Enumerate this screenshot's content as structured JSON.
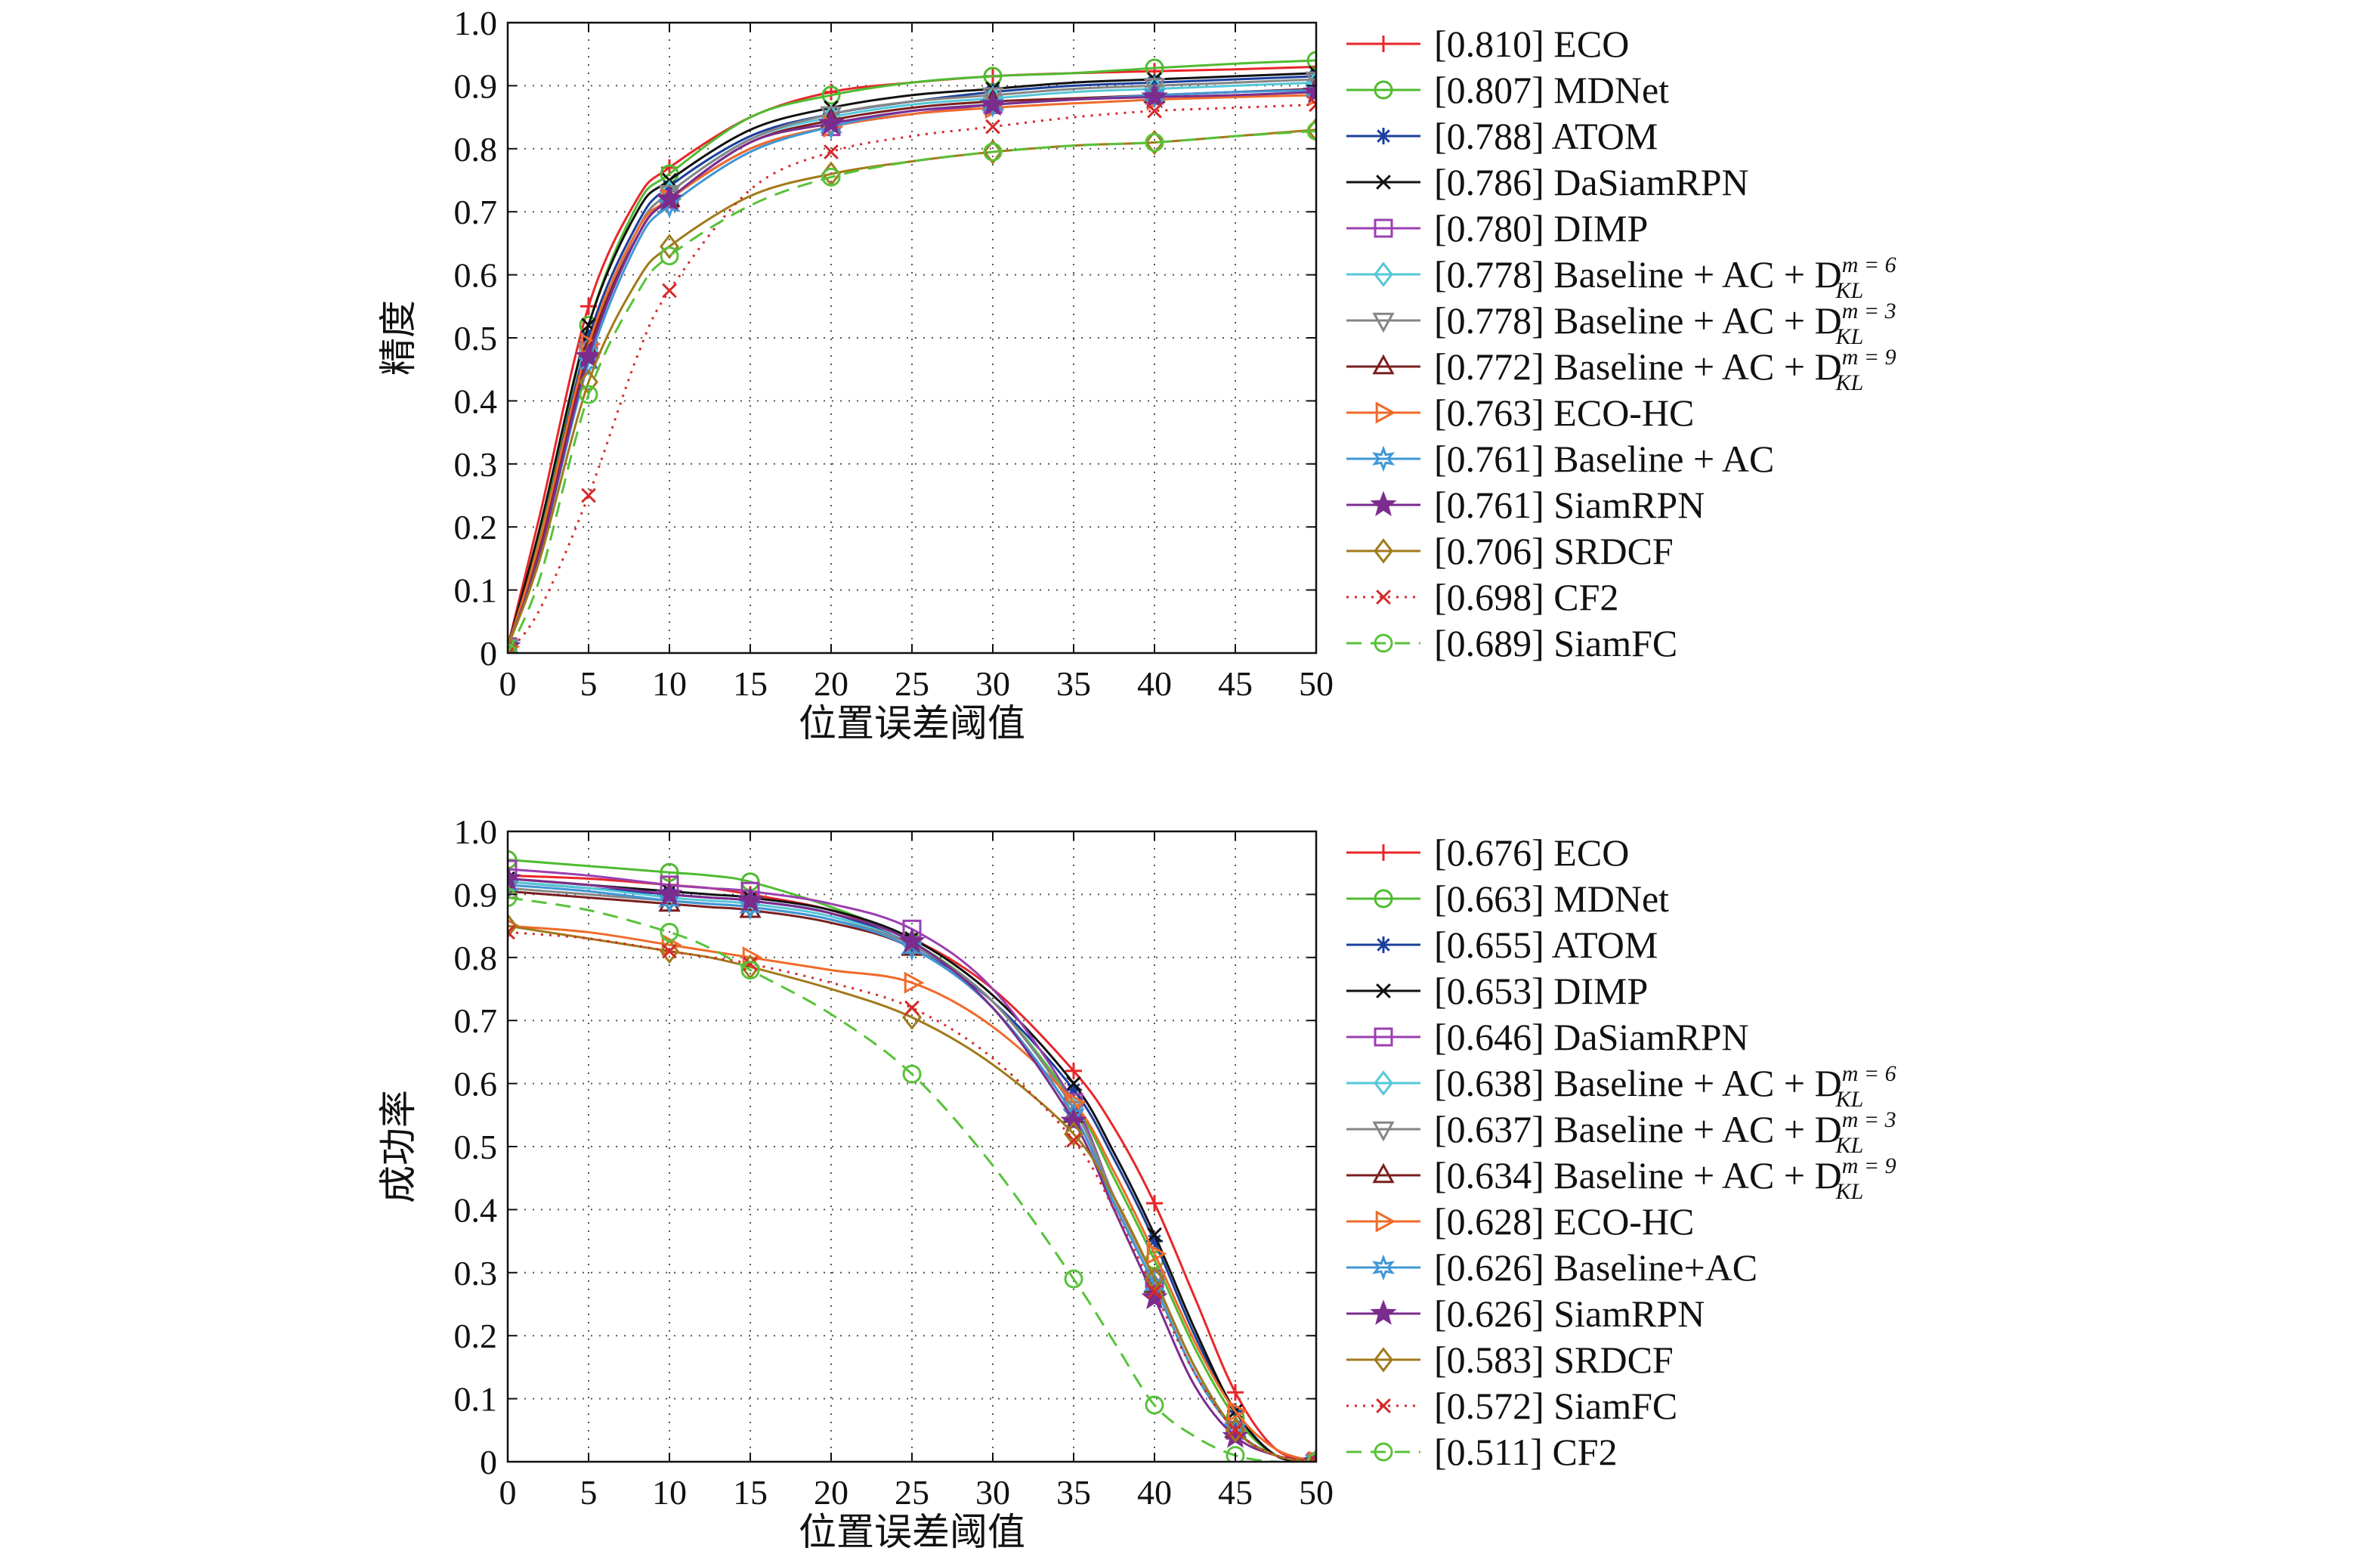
{
  "chart_data": [
    {
      "type": "line",
      "title": "",
      "xlabel": "位置误差阈值",
      "ylabel": "精度",
      "xlim": [
        0,
        50
      ],
      "ylim": [
        0,
        1
      ],
      "grid": true,
      "legend_placement": "right-outside",
      "x_ticks": [
        "0",
        "5",
        "10",
        "15",
        "20",
        "25",
        "30",
        "35",
        "40",
        "45",
        "50"
      ],
      "y_ticks": [
        "0",
        "0.1",
        "0.2",
        "0.3",
        "0.4",
        "0.5",
        "0.6",
        "0.7",
        "0.8",
        "0.9",
        "1.0"
      ],
      "x": [
        0,
        2,
        5,
        8,
        10,
        15,
        20,
        25,
        30,
        35,
        40,
        45,
        50
      ],
      "series": [
        {
          "score": "[0.810]",
          "name": "ECO",
          "color": "#e8262a",
          "marker": "plus",
          "dash": "solid",
          "values": [
            0.01,
            0.22,
            0.55,
            0.72,
            0.77,
            0.85,
            0.89,
            0.905,
            0.915,
            0.92,
            0.923,
            0.926,
            0.93
          ]
        },
        {
          "score": "[0.807]",
          "name": "MDNet",
          "color": "#4fbb30",
          "marker": "circle",
          "dash": "solid",
          "values": [
            0.01,
            0.19,
            0.52,
            0.71,
            0.76,
            0.85,
            0.885,
            0.905,
            0.915,
            0.92,
            0.928,
            0.935,
            0.94
          ]
        },
        {
          "score": "[0.788]",
          "name": "ATOM",
          "color": "#1b3f9c",
          "marker": "asterisk",
          "dash": "solid",
          "values": [
            0.01,
            0.18,
            0.5,
            0.68,
            0.74,
            0.82,
            0.855,
            0.875,
            0.89,
            0.9,
            0.905,
            0.91,
            0.915
          ]
        },
        {
          "score": "[0.786]",
          "name": "DaSiamRPN",
          "color": "#111111",
          "marker": "x",
          "dash": "solid",
          "values": [
            0.01,
            0.2,
            0.52,
            0.7,
            0.75,
            0.83,
            0.865,
            0.885,
            0.895,
            0.905,
            0.91,
            0.915,
            0.92
          ]
        },
        {
          "score": "[0.780]",
          "name": "DIMP",
          "color": "#9b3fb0",
          "marker": "square",
          "dash": "solid",
          "values": [
            0.01,
            0.17,
            0.48,
            0.66,
            0.72,
            0.8,
            0.835,
            0.855,
            0.87,
            0.878,
            0.885,
            0.89,
            0.895
          ]
        },
        {
          "score": "[0.778]",
          "name": "Baseline + AC + D",
          "sup": "m = 6",
          "sub": "KL",
          "color": "#54c8d8",
          "marker": "diamond",
          "dash": "solid",
          "values": [
            0.01,
            0.17,
            0.48,
            0.67,
            0.73,
            0.815,
            0.85,
            0.87,
            0.88,
            0.89,
            0.895,
            0.9,
            0.905
          ]
        },
        {
          "score": "[0.778]",
          "name": "Baseline + AC + D",
          "sup": "m = 3",
          "sub": "KL",
          "color": "#858585",
          "marker": "triangle-down",
          "dash": "solid",
          "values": [
            0.01,
            0.17,
            0.48,
            0.67,
            0.73,
            0.815,
            0.855,
            0.875,
            0.885,
            0.895,
            0.9,
            0.905,
            0.91
          ]
        },
        {
          "score": "[0.772]",
          "name": "Baseline + AC + D",
          "sup": "m = 9",
          "sub": "KL",
          "color": "#7a1f1f",
          "marker": "triangle-up",
          "dash": "solid",
          "values": [
            0.01,
            0.17,
            0.48,
            0.66,
            0.72,
            0.81,
            0.845,
            0.865,
            0.875,
            0.88,
            0.885,
            0.89,
            0.895
          ]
        },
        {
          "score": "[0.763]",
          "name": "ECO-HC",
          "color": "#ef6b2a",
          "marker": "triangle-right",
          "dash": "solid",
          "values": [
            0.01,
            0.18,
            0.49,
            0.67,
            0.72,
            0.8,
            0.835,
            0.855,
            0.865,
            0.872,
            0.878,
            0.882,
            0.885
          ]
        },
        {
          "score": "[0.761]",
          "name": "Baseline + AC",
          "color": "#3f97d6",
          "marker": "star6",
          "dash": "solid",
          "values": [
            0.01,
            0.16,
            0.46,
            0.65,
            0.71,
            0.795,
            0.835,
            0.86,
            0.87,
            0.878,
            0.885,
            0.89,
            0.893
          ]
        },
        {
          "score": "[0.761]",
          "name": "SiamRPN",
          "color": "#7b2d8e",
          "marker": "star5",
          "dash": "solid",
          "values": [
            0.01,
            0.16,
            0.47,
            0.66,
            0.72,
            0.81,
            0.84,
            0.86,
            0.87,
            0.878,
            0.882,
            0.885,
            0.89
          ]
        },
        {
          "score": "[0.706]",
          "name": "SRDCF",
          "color": "#a07a1a",
          "marker": "diamond",
          "dash": "solid",
          "values": [
            0.01,
            0.15,
            0.43,
            0.59,
            0.645,
            0.725,
            0.76,
            0.78,
            0.795,
            0.805,
            0.81,
            0.82,
            0.83
          ]
        },
        {
          "score": "[0.698]",
          "name": "CF2",
          "color": "#d62a2a",
          "marker": "x",
          "dash": "dotted",
          "values": [
            0.0,
            0.07,
            0.25,
            0.47,
            0.575,
            0.735,
            0.795,
            0.82,
            0.835,
            0.85,
            0.86,
            0.865,
            0.87
          ]
        },
        {
          "score": "[0.689]",
          "name": "SiamFC",
          "color": "#58c23a",
          "marker": "circle",
          "dash": "dashed",
          "values": [
            0.0,
            0.12,
            0.41,
            0.57,
            0.63,
            0.71,
            0.755,
            0.78,
            0.795,
            0.805,
            0.81,
            0.82,
            0.828
          ]
        }
      ]
    },
    {
      "type": "line",
      "title": "",
      "xlabel": "位置误差阈值",
      "ylabel": "成功率",
      "xlim": [
        0,
        50
      ],
      "ylim": [
        0,
        1
      ],
      "grid": true,
      "legend_placement": "right-outside",
      "x_ticks": [
        "0",
        "5",
        "10",
        "15",
        "20",
        "25",
        "30",
        "35",
        "40",
        "45",
        "50"
      ],
      "y_ticks": [
        "0",
        "0.1",
        "0.2",
        "0.3",
        "0.4",
        "0.5",
        "0.6",
        "0.7",
        "0.8",
        "0.9",
        "1.0"
      ],
      "x": [
        0,
        5,
        10,
        12.5,
        15,
        20,
        25,
        30,
        35,
        37.5,
        40,
        42.5,
        45,
        47.5,
        50
      ],
      "series": [
        {
          "score": "[0.676]",
          "name": "ECO",
          "color": "#e8262a",
          "marker": "plus",
          "dash": "solid",
          "values": [
            0.93,
            0.925,
            0.915,
            0.91,
            0.9,
            0.875,
            0.83,
            0.75,
            0.62,
            0.53,
            0.41,
            0.26,
            0.11,
            0.02,
            0.0
          ]
        },
        {
          "score": "[0.663]",
          "name": "MDNet",
          "color": "#4fbb30",
          "marker": "circle",
          "dash": "solid",
          "values": [
            0.955,
            0.945,
            0.935,
            0.93,
            0.92,
            0.88,
            0.825,
            0.73,
            0.57,
            0.45,
            0.32,
            0.18,
            0.07,
            0.01,
            0.0
          ]
        },
        {
          "score": "[0.655]",
          "name": "ATOM",
          "color": "#1b3f9c",
          "marker": "asterisk",
          "dash": "solid",
          "values": [
            0.92,
            0.91,
            0.9,
            0.895,
            0.89,
            0.87,
            0.82,
            0.73,
            0.59,
            0.48,
            0.35,
            0.2,
            0.08,
            0.01,
            0.0
          ]
        },
        {
          "score": "[0.653]",
          "name": "DIMP",
          "color": "#111111",
          "marker": "x",
          "dash": "solid",
          "values": [
            0.925,
            0.915,
            0.905,
            0.9,
            0.895,
            0.875,
            0.83,
            0.74,
            0.6,
            0.49,
            0.36,
            0.21,
            0.08,
            0.01,
            0.0
          ]
        },
        {
          "score": "[0.646]",
          "name": "DaSiamRPN",
          "color": "#9b3fb0",
          "marker": "square",
          "dash": "solid",
          "values": [
            0.94,
            0.93,
            0.915,
            0.91,
            0.905,
            0.885,
            0.845,
            0.75,
            0.57,
            0.42,
            0.29,
            0.15,
            0.05,
            0.01,
            0.0
          ]
        },
        {
          "score": "[0.638]",
          "name": "Baseline + AC + D",
          "sup": "m = 6",
          "sub": "KL",
          "color": "#54c8d8",
          "marker": "diamond",
          "dash": "solid",
          "values": [
            0.92,
            0.91,
            0.895,
            0.89,
            0.885,
            0.865,
            0.82,
            0.73,
            0.56,
            0.42,
            0.29,
            0.15,
            0.05,
            0.01,
            0.0
          ]
        },
        {
          "score": "[0.637]",
          "name": "Baseline + AC + D",
          "sup": "m = 3",
          "sub": "KL",
          "color": "#858585",
          "marker": "triangle-down",
          "dash": "solid",
          "values": [
            0.91,
            0.9,
            0.89,
            0.885,
            0.88,
            0.86,
            0.82,
            0.73,
            0.56,
            0.42,
            0.29,
            0.15,
            0.05,
            0.01,
            0.0
          ]
        },
        {
          "score": "[0.634]",
          "name": "Baseline + AC + D",
          "sup": "m = 9",
          "sub": "KL",
          "color": "#7a1f1f",
          "marker": "triangle-up",
          "dash": "solid",
          "values": [
            0.905,
            0.895,
            0.885,
            0.88,
            0.875,
            0.855,
            0.815,
            0.72,
            0.55,
            0.41,
            0.28,
            0.14,
            0.05,
            0.01,
            0.0
          ]
        },
        {
          "score": "[0.628]",
          "name": "ECO-HC",
          "color": "#ef6b2a",
          "marker": "triangle-right",
          "dash": "solid",
          "values": [
            0.85,
            0.84,
            0.82,
            0.81,
            0.8,
            0.78,
            0.76,
            0.69,
            0.57,
            0.46,
            0.33,
            0.19,
            0.08,
            0.02,
            0.0
          ]
        },
        {
          "score": "[0.626]",
          "name": "Baseline+AC",
          "color": "#3f97d6",
          "marker": "star6",
          "dash": "solid",
          "values": [
            0.915,
            0.905,
            0.89,
            0.885,
            0.88,
            0.86,
            0.815,
            0.72,
            0.55,
            0.41,
            0.28,
            0.14,
            0.05,
            0.01,
            0.0
          ]
        },
        {
          "score": "[0.626]",
          "name": "SiamRPN",
          "color": "#7b2d8e",
          "marker": "star5",
          "dash": "solid",
          "values": [
            0.925,
            0.915,
            0.9,
            0.895,
            0.89,
            0.87,
            0.825,
            0.72,
            0.54,
            0.4,
            0.26,
            0.12,
            0.04,
            0.01,
            0.0
          ]
        },
        {
          "score": "[0.583]",
          "name": "SRDCF",
          "color": "#a07a1a",
          "marker": "diamond",
          "dash": "solid",
          "values": [
            0.85,
            0.83,
            0.81,
            0.8,
            0.785,
            0.75,
            0.705,
            0.63,
            0.52,
            0.42,
            0.29,
            0.15,
            0.05,
            0.01,
            0.0
          ]
        },
        {
          "score": "[0.572]",
          "name": "SiamFC",
          "color": "#d62a2a",
          "marker": "x",
          "dash": "dotted",
          "values": [
            0.84,
            0.83,
            0.81,
            0.8,
            0.79,
            0.76,
            0.72,
            0.64,
            0.51,
            0.4,
            0.27,
            0.14,
            0.05,
            0.01,
            0.0
          ]
        },
        {
          "score": "[0.511]",
          "name": "CF2",
          "color": "#58c23a",
          "marker": "circle",
          "dash": "dashed",
          "values": [
            0.895,
            0.875,
            0.84,
            0.815,
            0.78,
            0.71,
            0.615,
            0.47,
            0.29,
            0.19,
            0.09,
            0.04,
            0.01,
            0.0,
            0.0
          ]
        }
      ]
    }
  ]
}
